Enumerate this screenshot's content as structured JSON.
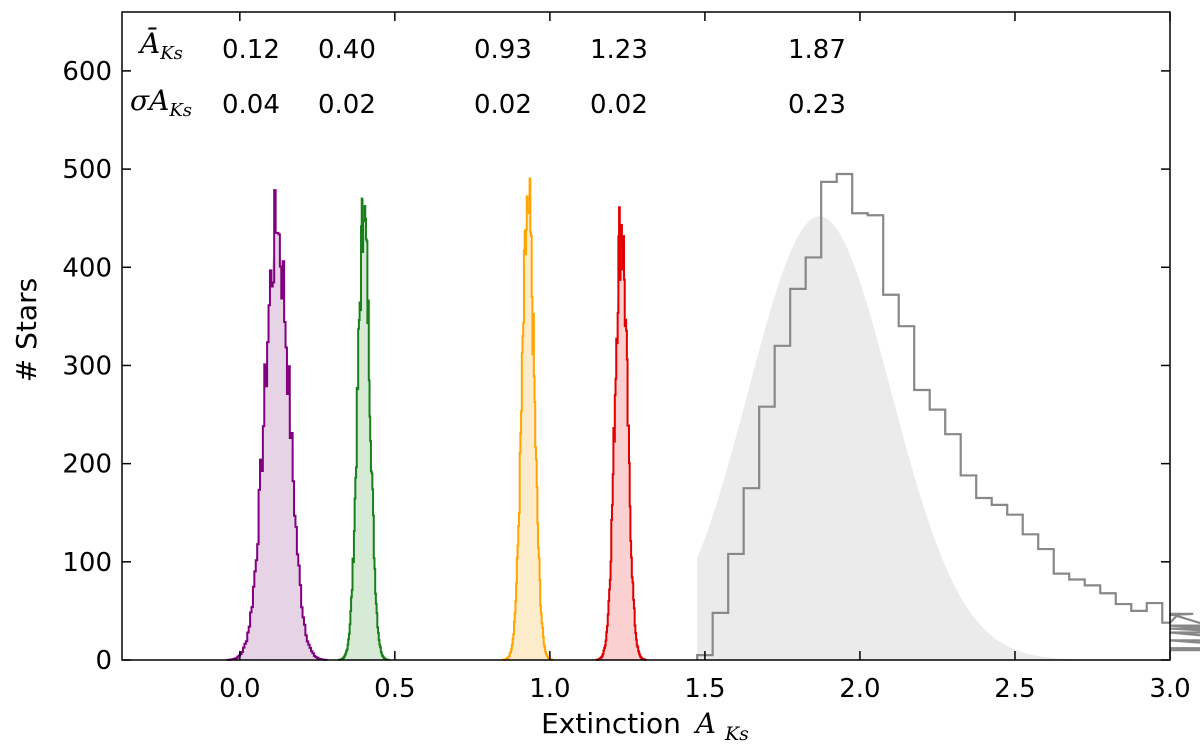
{
  "chart_data": {
    "type": "histogram",
    "xlabel": "Extinction",
    "xlabel_symbol": "A",
    "xlabel_subscript": "Ks",
    "ylabel": "# Stars",
    "xlim": [
      -0.38,
      3.0
    ],
    "ylim": [
      0,
      660
    ],
    "x_ticks": [
      0.0,
      0.5,
      1.0,
      1.5,
      2.0,
      2.5,
      3.0
    ],
    "x_tick_labels": [
      "0.0",
      "0.5",
      "1.0",
      "1.5",
      "2.0",
      "2.5",
      "3.0"
    ],
    "y_ticks": [
      0,
      100,
      200,
      300,
      400,
      500,
      600
    ],
    "y_tick_labels": [
      "0",
      "100",
      "200",
      "300",
      "400",
      "500",
      "600"
    ],
    "annotation": {
      "mean_row_label": "Ā_Ks",
      "sigma_row_label": "σA_Ks",
      "means": [
        "0.12",
        "0.40",
        "0.93",
        "1.23",
        "1.87"
      ],
      "sigmas": [
        "0.04",
        "0.02",
        "0.02",
        "0.02",
        "0.23"
      ]
    },
    "series": [
      {
        "color": "#800080",
        "fill": "#e6d4e6",
        "mean": 0.12,
        "sigma": 0.04,
        "peak": 435
      },
      {
        "color": "#1a7f1a",
        "fill": "#d6ead6",
        "mean": 0.4,
        "sigma": 0.02,
        "peak": 447
      },
      {
        "color": "#ffa500",
        "fill": "#fdeccc",
        "mean": 0.93,
        "sigma": 0.02,
        "peak": 457
      },
      {
        "color": "#e00000",
        "fill": "#fbd0d0",
        "mean": 1.23,
        "sigma": 0.02,
        "peak": 443
      }
    ],
    "wide_component": {
      "color": "#888888",
      "fill": "#ebebeb",
      "mean": 1.87,
      "sigma": 0.23,
      "gaussian_peak": 452,
      "bin_width": 0.05,
      "bin_edges_start": 1.475,
      "counts": [
        5,
        48,
        108,
        175,
        258,
        320,
        378,
        410,
        487,
        495,
        455,
        453,
        372,
        340,
        275,
        255,
        230,
        188,
        165,
        158,
        148,
        128,
        113,
        88,
        82,
        76,
        68,
        57,
        50,
        58,
        38,
        46,
        47,
        35,
        32,
        28,
        20,
        12,
        10
      ]
    }
  }
}
